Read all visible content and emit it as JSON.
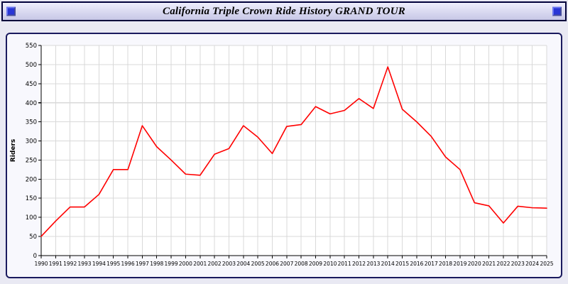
{
  "header": {
    "title": "California Triple Crown Ride History GRAND TOUR"
  },
  "colors": {
    "line": "#ff0000",
    "grid": "#d9d9d9",
    "axis": "#000000",
    "plot_bg": "#ffffff",
    "chart_bg": "#f8f8fd",
    "page_bg": "#e9e9f3",
    "header_square": "#2936d6"
  },
  "chart_data": {
    "type": "line",
    "title": "California Triple Crown Ride History GRAND TOUR",
    "xlabel": "",
    "ylabel": "Riders",
    "ylim": [
      0,
      550
    ],
    "ytick_step": 50,
    "grid": true,
    "legend": false,
    "x": [
      1990,
      1991,
      1992,
      1993,
      1994,
      1995,
      1996,
      1997,
      1998,
      1999,
      2000,
      2001,
      2002,
      2003,
      2004,
      2005,
      2006,
      2007,
      2008,
      2009,
      2010,
      2011,
      2012,
      2013,
      2014,
      2015,
      2016,
      2017,
      2018,
      2019,
      2020,
      2021,
      2022,
      2023,
      2024,
      2025
    ],
    "series": [
      {
        "name": "Riders",
        "color": "#ff0000",
        "values": [
          50,
          90,
          127,
          127,
          160,
          225,
          225,
          340,
          285,
          250,
          213,
          210,
          265,
          280,
          340,
          310,
          267,
          338,
          343,
          390,
          371,
          380,
          411,
          385,
          494,
          383,
          350,
          312,
          258,
          225,
          138,
          130,
          85,
          129,
          125,
          124
        ]
      }
    ]
  }
}
